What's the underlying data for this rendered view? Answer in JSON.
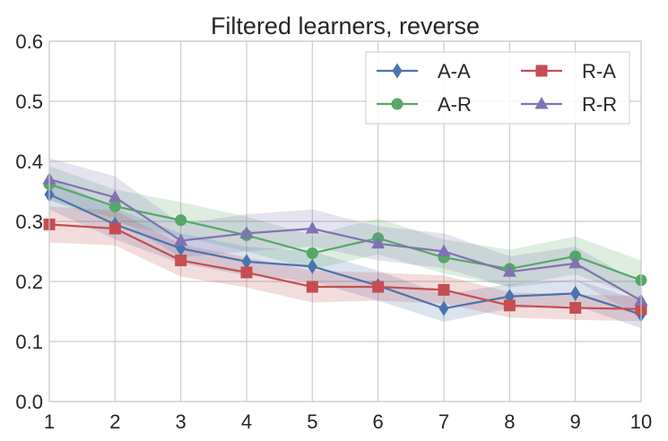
{
  "chart_data": {
    "type": "line",
    "title": "Filtered learners, reverse",
    "xlabel": "",
    "ylabel": "",
    "x": [
      1,
      2,
      3,
      4,
      5,
      6,
      7,
      8,
      9,
      10
    ],
    "xlim": [
      1,
      10
    ],
    "ylim": [
      0.0,
      0.6
    ],
    "x_ticks": [
      "1",
      "2",
      "3",
      "4",
      "5",
      "6",
      "7",
      "8",
      "9",
      "10"
    ],
    "y_ticks": [
      "0.0",
      "0.1",
      "0.2",
      "0.3",
      "0.4",
      "0.5",
      "0.6"
    ],
    "grid": true,
    "legend_position": "top-right",
    "series": [
      {
        "name": "A-A",
        "color": "#4c72b0",
        "marker": "diamond",
        "values": [
          0.345,
          0.295,
          0.255,
          0.233,
          0.225,
          0.193,
          0.155,
          0.175,
          0.18,
          0.145
        ],
        "lower": [
          0.32,
          0.27,
          0.23,
          0.21,
          0.2,
          0.168,
          0.133,
          0.155,
          0.16,
          0.122
        ],
        "upper": [
          0.372,
          0.322,
          0.28,
          0.258,
          0.25,
          0.218,
          0.178,
          0.196,
          0.203,
          0.168
        ]
      },
      {
        "name": "A-R",
        "color": "#55a868",
        "marker": "circle",
        "values": [
          0.362,
          0.325,
          0.302,
          0.277,
          0.247,
          0.272,
          0.24,
          0.221,
          0.242,
          0.202
        ],
        "lower": [
          0.335,
          0.298,
          0.275,
          0.25,
          0.22,
          0.245,
          0.213,
          0.192,
          0.212,
          0.172
        ],
        "upper": [
          0.392,
          0.353,
          0.332,
          0.308,
          0.277,
          0.305,
          0.27,
          0.253,
          0.275,
          0.235
        ]
      },
      {
        "name": "R-A",
        "color": "#c44e52",
        "marker": "square",
        "values": [
          0.295,
          0.288,
          0.235,
          0.215,
          0.191,
          0.191,
          0.186,
          0.16,
          0.156,
          0.154
        ],
        "lower": [
          0.265,
          0.26,
          0.208,
          0.19,
          0.165,
          0.168,
          0.163,
          0.14,
          0.136,
          0.134
        ],
        "upper": [
          0.325,
          0.318,
          0.262,
          0.24,
          0.218,
          0.215,
          0.21,
          0.182,
          0.178,
          0.176
        ]
      },
      {
        "name": "R-R",
        "color": "#8172b2",
        "marker": "triangle",
        "values": [
          0.37,
          0.34,
          0.268,
          0.28,
          0.288,
          0.263,
          0.25,
          0.216,
          0.23,
          0.168
        ],
        "lower": [
          0.335,
          0.305,
          0.24,
          0.25,
          0.258,
          0.235,
          0.222,
          0.19,
          0.202,
          0.14
        ],
        "upper": [
          0.405,
          0.375,
          0.296,
          0.312,
          0.32,
          0.292,
          0.28,
          0.242,
          0.258,
          0.196
        ]
      }
    ]
  }
}
